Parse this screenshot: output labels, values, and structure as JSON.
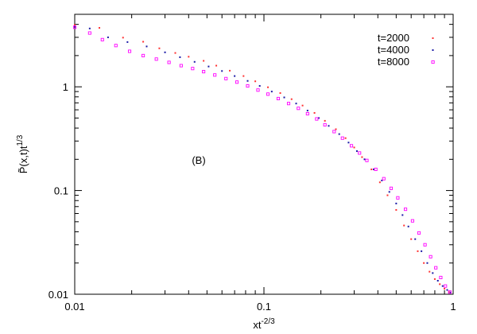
{
  "chart_data": {
    "type": "scatter",
    "x_scale": "log",
    "y_scale": "log",
    "xlim": [
      0.01,
      1
    ],
    "ylim": [
      0.01,
      5
    ],
    "grid": false,
    "legend_position": "top-right",
    "xlabel": {
      "base": "xt",
      "sup": "-2/3"
    },
    "ylabel": {
      "base": "P̃(x,t)t",
      "sup": "1/3"
    },
    "x_ticks": [
      {
        "value": 0.01,
        "label": "0.01"
      },
      {
        "value": 0.1,
        "label": "0.1"
      },
      {
        "value": 1,
        "label": "1"
      }
    ],
    "y_ticks": [
      {
        "value": 0.01,
        "label": "0.01"
      },
      {
        "value": 0.1,
        "label": "0.1"
      },
      {
        "value": 1,
        "label": "1"
      }
    ],
    "annotation": "(B)",
    "series": [
      {
        "name": "t=2000",
        "color": "#ff3333",
        "marker": "dot",
        "points": [
          [
            0.01,
            3.95
          ],
          [
            0.0135,
            3.7
          ],
          [
            0.018,
            2.98
          ],
          [
            0.023,
            2.72
          ],
          [
            0.028,
            2.35
          ],
          [
            0.034,
            2.12
          ],
          [
            0.04,
            1.95
          ],
          [
            0.048,
            1.78
          ],
          [
            0.056,
            1.6
          ],
          [
            0.066,
            1.43
          ],
          [
            0.078,
            1.27
          ],
          [
            0.09,
            1.13
          ],
          [
            0.105,
            0.99
          ],
          [
            0.122,
            0.87
          ],
          [
            0.14,
            0.76
          ],
          [
            0.16,
            0.66
          ],
          [
            0.185,
            0.56
          ],
          [
            0.21,
            0.47
          ],
          [
            0.24,
            0.39
          ],
          [
            0.27,
            0.32
          ],
          [
            0.3,
            0.26
          ],
          [
            0.33,
            0.21
          ],
          [
            0.37,
            0.16
          ],
          [
            0.41,
            0.12
          ],
          [
            0.45,
            0.09
          ],
          [
            0.5,
            0.065
          ],
          [
            0.55,
            0.046
          ],
          [
            0.6,
            0.034
          ],
          [
            0.65,
            0.026
          ],
          [
            0.7,
            0.02
          ],
          [
            0.75,
            0.0165
          ],
          [
            0.8,
            0.014
          ],
          [
            0.85,
            0.0125
          ],
          [
            0.9,
            0.0113
          ],
          [
            0.95,
            0.0105
          ]
        ]
      },
      {
        "name": "t=4000",
        "color": "#1a1aa6",
        "marker": "dot",
        "points": [
          [
            0.01,
            3.8
          ],
          [
            0.012,
            3.65
          ],
          [
            0.015,
            3.0
          ],
          [
            0.019,
            2.7
          ],
          [
            0.024,
            2.45
          ],
          [
            0.03,
            2.15
          ],
          [
            0.036,
            1.93
          ],
          [
            0.043,
            1.74
          ],
          [
            0.051,
            1.57
          ],
          [
            0.06,
            1.42
          ],
          [
            0.07,
            1.27
          ],
          [
            0.082,
            1.14
          ],
          [
            0.095,
            1.02
          ],
          [
            0.11,
            0.9
          ],
          [
            0.128,
            0.79
          ],
          [
            0.148,
            0.69
          ],
          [
            0.17,
            0.59
          ],
          [
            0.195,
            0.5
          ],
          [
            0.22,
            0.42
          ],
          [
            0.25,
            0.35
          ],
          [
            0.28,
            0.29
          ],
          [
            0.31,
            0.24
          ],
          [
            0.34,
            0.2
          ],
          [
            0.38,
            0.16
          ],
          [
            0.42,
            0.125
          ],
          [
            0.46,
            0.097
          ],
          [
            0.5,
            0.075
          ],
          [
            0.54,
            0.058
          ],
          [
            0.58,
            0.045
          ],
          [
            0.63,
            0.034
          ],
          [
            0.68,
            0.026
          ],
          [
            0.73,
            0.02
          ],
          [
            0.78,
            0.016
          ],
          [
            0.83,
            0.0135
          ],
          [
            0.88,
            0.012
          ],
          [
            0.93,
            0.011
          ],
          [
            0.97,
            0.0104
          ]
        ]
      },
      {
        "name": "t=8000",
        "color": "#ff00ff",
        "marker": "square",
        "points": [
          [
            0.01,
            3.75
          ],
          [
            0.012,
            3.3
          ],
          [
            0.014,
            2.85
          ],
          [
            0.0165,
            2.5
          ],
          [
            0.0195,
            2.2
          ],
          [
            0.023,
            2.0
          ],
          [
            0.027,
            1.85
          ],
          [
            0.0315,
            1.72
          ],
          [
            0.0365,
            1.6
          ],
          [
            0.042,
            1.5
          ],
          [
            0.048,
            1.4
          ],
          [
            0.055,
            1.3
          ],
          [
            0.063,
            1.2
          ],
          [
            0.072,
            1.11
          ],
          [
            0.082,
            1.02
          ],
          [
            0.093,
            0.93
          ],
          [
            0.105,
            0.85
          ],
          [
            0.119,
            0.77
          ],
          [
            0.135,
            0.69
          ],
          [
            0.152,
            0.62
          ],
          [
            0.17,
            0.55
          ],
          [
            0.19,
            0.49
          ],
          [
            0.21,
            0.43
          ],
          [
            0.235,
            0.37
          ],
          [
            0.26,
            0.32
          ],
          [
            0.29,
            0.27
          ],
          [
            0.32,
            0.23
          ],
          [
            0.35,
            0.195
          ],
          [
            0.39,
            0.16
          ],
          [
            0.43,
            0.13
          ],
          [
            0.47,
            0.105
          ],
          [
            0.51,
            0.085
          ],
          [
            0.56,
            0.066
          ],
          [
            0.61,
            0.051
          ],
          [
            0.66,
            0.039
          ],
          [
            0.71,
            0.03
          ],
          [
            0.76,
            0.023
          ],
          [
            0.81,
            0.018
          ],
          [
            0.86,
            0.0145
          ],
          [
            0.91,
            0.012
          ],
          [
            0.96,
            0.0105
          ]
        ]
      }
    ]
  }
}
